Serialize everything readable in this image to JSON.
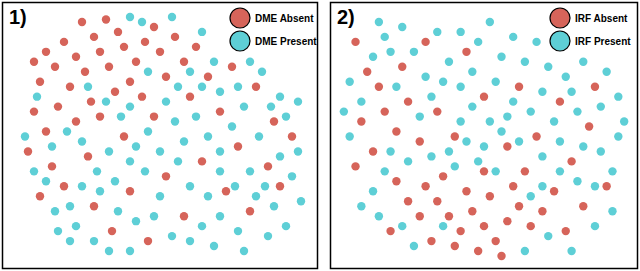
{
  "chart_data": [
    {
      "type": "scatter",
      "title": "1)",
      "tick_labels": false,
      "legend": "top-right",
      "xlim": [
        0,
        100
      ],
      "ylim": [
        0,
        100
      ],
      "series": [
        {
          "name": "DME Absent",
          "color": "#d6645a",
          "marker": "circle",
          "x": [
            8,
            12,
            15,
            10,
            18,
            22,
            25,
            20,
            28,
            30,
            33,
            36,
            38,
            42,
            45,
            48,
            40,
            35,
            27,
            16,
            8,
            12,
            22,
            30,
            50,
            55,
            58,
            52,
            44,
            62,
            24,
            32,
            6,
            14,
            26,
            38,
            48,
            60,
            70,
            82,
            88,
            76,
            64,
            52,
            40,
            28,
            18,
            34,
            58,
            72,
            86,
            94,
            66,
            74,
            10,
            46,
            80,
            90
          ],
          "y": [
            80,
            84,
            78,
            72,
            88,
            82,
            76,
            70,
            90,
            84,
            78,
            92,
            86,
            80,
            88,
            94,
            72,
            68,
            64,
            62,
            60,
            52,
            56,
            58,
            84,
            90,
            80,
            74,
            66,
            86,
            96,
            97,
            44,
            38,
            42,
            50,
            58,
            66,
            60,
            70,
            56,
            46,
            40,
            34,
            28,
            22,
            30,
            12,
            18,
            28,
            38,
            50,
            74,
            78,
            26,
            8,
            20,
            30
          ]
        },
        {
          "name": "DME Present",
          "color": "#5ecfd6",
          "marker": "circle",
          "x": [
            5,
            9,
            14,
            19,
            24,
            29,
            33,
            37,
            42,
            46,
            50,
            55,
            58,
            62,
            66,
            70,
            74,
            78,
            83,
            87,
            92,
            96,
            90,
            85,
            80,
            75,
            70,
            66,
            60,
            56,
            50,
            45,
            40,
            35,
            30,
            24,
            20,
            15,
            12,
            8,
            22,
            28,
            36,
            42,
            48,
            54,
            60,
            64,
            70,
            76,
            82,
            88,
            94,
            97,
            92,
            40,
            33,
            68,
            52,
            56,
            64,
            70,
            76,
            80,
            68,
            60,
            46,
            40,
            32,
            26,
            44,
            40,
            20,
            16,
            78,
            86,
            90,
            96,
            84,
            54,
            64
          ],
          "y": [
            50,
            66,
            46,
            52,
            48,
            36,
            44,
            58,
            46,
            52,
            44,
            56,
            48,
            58,
            50,
            44,
            54,
            62,
            50,
            62,
            58,
            44,
            42,
            30,
            36,
            30,
            36,
            26,
            30,
            40,
            26,
            36,
            40,
            32,
            28,
            30,
            22,
            20,
            32,
            36,
            14,
            8,
            20,
            16,
            18,
            10,
            8,
            14,
            18,
            12,
            26,
            22,
            34,
            24,
            14,
            4,
            4,
            6,
            64,
            70,
            70,
            68,
            70,
            80,
            80,
            76,
            76,
            62,
            64,
            70,
            96,
            98,
            8,
            12,
            4,
            10,
            66,
            64,
            76,
            98,
            92
          ]
        }
      ]
    },
    {
      "type": "scatter",
      "title": "2)",
      "tick_labels": false,
      "legend": "top-right",
      "xlim": [
        0,
        100
      ],
      "ylim": [
        0,
        100
      ],
      "series": [
        {
          "name": "IRF Absent",
          "color": "#d6645a",
          "marker": "circle",
          "x": [
            30,
            34,
            38,
            42,
            46,
            50,
            54,
            58,
            62,
            66,
            44,
            52,
            60,
            36,
            40,
            48,
            56,
            70,
            28,
            24,
            20,
            74,
            64,
            50,
            12,
            8,
            16,
            20,
            14,
            24,
            28,
            6,
            10,
            22,
            34,
            40,
            58,
            68,
            80,
            86,
            92,
            78,
            84,
            18,
            32,
            50,
            62,
            30,
            44,
            6,
            76,
            88
          ],
          "y": [
            30,
            24,
            18,
            12,
            20,
            14,
            8,
            16,
            22,
            14,
            28,
            26,
            30,
            34,
            6,
            4,
            2,
            20,
            18,
            24,
            32,
            28,
            36,
            36,
            44,
            56,
            60,
            52,
            70,
            64,
            48,
            38,
            76,
            78,
            60,
            50,
            46,
            50,
            40,
            54,
            30,
            12,
            22,
            12,
            8,
            66,
            70,
            88,
            84,
            88,
            64,
            70
          ]
        },
        {
          "name": "IRF Present",
          "color": "#5ecfd6",
          "marker": "circle",
          "x": [
            14,
            16,
            22,
            26,
            34,
            38,
            42,
            48,
            52,
            56,
            60,
            64,
            68,
            72,
            78,
            84,
            92,
            96,
            90,
            82,
            74,
            66,
            58,
            52,
            46,
            42,
            36,
            30,
            18,
            12,
            4,
            8,
            4,
            18,
            24,
            32,
            38,
            44,
            50,
            56,
            62,
            70,
            76,
            84,
            90,
            96,
            94,
            88,
            82,
            76,
            70,
            66,
            72,
            80,
            88,
            94,
            12,
            8,
            14,
            22,
            26,
            16,
            28,
            46,
            54,
            60,
            70,
            80,
            48,
            40,
            2,
            20,
            32,
            42,
            54,
            64,
            36,
            98
          ],
          "y": [
            96,
            90,
            94,
            84,
            92,
            80,
            92,
            88,
            96,
            82,
            90,
            80,
            88,
            78,
            74,
            80,
            76,
            66,
            62,
            60,
            56,
            60,
            58,
            56,
            62,
            70,
            72,
            74,
            84,
            82,
            72,
            64,
            50,
            44,
            40,
            42,
            44,
            48,
            46,
            52,
            48,
            42,
            48,
            46,
            44,
            50,
            36,
            30,
            32,
            36,
            30,
            26,
            10,
            4,
            14,
            20,
            28,
            22,
            18,
            14,
            6,
            36,
            58,
            76,
            72,
            64,
            68,
            68,
            40,
            38,
            60,
            70,
            66,
            56,
            36,
            4,
            14,
            56
          ]
        }
      ]
    }
  ]
}
